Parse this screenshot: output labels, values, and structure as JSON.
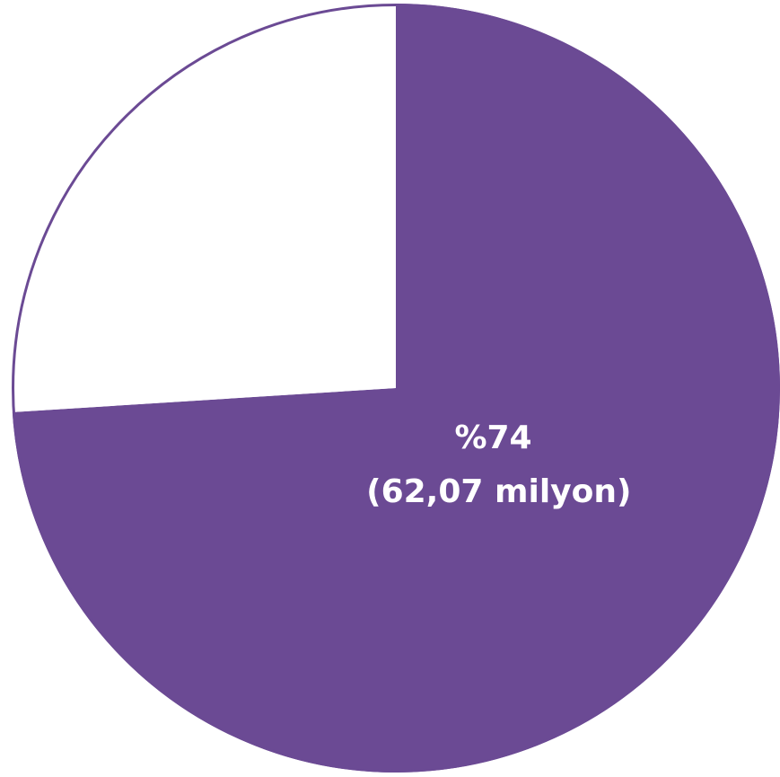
{
  "chart_data": {
    "type": "pie",
    "slices": [
      {
        "value": 74,
        "color": "#6b4a94",
        "label_line1": "%74",
        "label_line2": "(62,07 milyon)"
      },
      {
        "value": 26,
        "color": "#ffffff"
      }
    ],
    "start_angle_deg": 0,
    "direction": "clockwise",
    "outline_color": "#6b4a94"
  }
}
